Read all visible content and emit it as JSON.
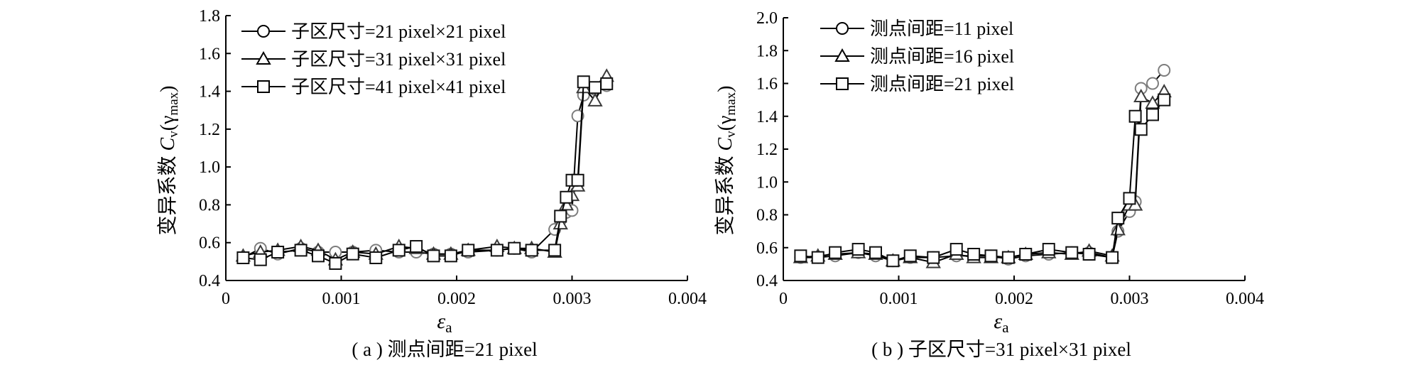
{
  "charts": [
    {
      "ylabel": "变异系数 Cv(γmax)",
      "ylabel_text": "变异系数 ",
      "ylabel_var": "C",
      "ylabel_sub": "v",
      "ylabel_paren": "(γ",
      "ylabel_sub2": "max",
      "ylabel_close": ")",
      "xlabel": "εa",
      "xlabel_var": "ε",
      "xlabel_sub": "a",
      "caption": "( a ) 测点间距=21 pixel",
      "xlim": [
        0,
        0.004
      ],
      "ylim": [
        0.4,
        1.8
      ],
      "xticks": [
        "0",
        "0.001",
        "0.002",
        "0.003",
        "0.004"
      ],
      "yticks": [
        "0.4",
        "0.6",
        "0.8",
        "1.0",
        "1.2",
        "1.4",
        "1.6",
        "1.8"
      ],
      "legend": [
        "子区尺寸=21 pixel×21 pixel",
        "子区尺寸=31 pixel×31 pixel",
        "子区尺寸=41 pixel×41 pixel"
      ]
    },
    {
      "ylabel": "变异系数 Cv(γmax)",
      "ylabel_text": "变异系数 ",
      "ylabel_var": "C",
      "ylabel_sub": "v",
      "ylabel_paren": "(γ",
      "ylabel_sub2": "max",
      "ylabel_close": ")",
      "xlabel": "εa",
      "xlabel_var": "ε",
      "xlabel_sub": "a",
      "caption": "( b ) 子区尺寸=31 pixel×31 pixel",
      "xlim": [
        0,
        0.004
      ],
      "ylim": [
        0.4,
        2.0
      ],
      "xticks": [
        "0",
        "0.001",
        "0.002",
        "0.003",
        "0.004"
      ],
      "yticks": [
        "0.4",
        "0.6",
        "0.8",
        "1.0",
        "1.2",
        "1.4",
        "1.6",
        "1.8",
        "2.0"
      ],
      "legend": [
        "测点间距=11 pixel",
        "测点间距=16 pixel",
        "测点间距=21 pixel"
      ]
    }
  ],
  "chart_data": [
    {
      "type": "line",
      "xlabel": "εa",
      "ylabel": "变异系数 Cv(γmax)",
      "xlim": [
        0,
        0.004
      ],
      "ylim": [
        0.4,
        1.8
      ],
      "grid": false,
      "legend_position": "top-left",
      "series": [
        {
          "name": "子区尺寸=21 pixel×21 pixel",
          "marker": "circle",
          "x": [
            0.00015,
            0.0003,
            0.00045,
            0.00065,
            0.0008,
            0.00095,
            0.0011,
            0.0013,
            0.0015,
            0.00165,
            0.0018,
            0.00195,
            0.0021,
            0.00235,
            0.0025,
            0.00265,
            0.00285,
            0.0029,
            0.00295,
            0.003,
            0.00305,
            0.0031,
            0.0032,
            0.0033
          ],
          "y": [
            0.52,
            0.57,
            0.54,
            0.57,
            0.55,
            0.55,
            0.55,
            0.56,
            0.55,
            0.55,
            0.54,
            0.54,
            0.55,
            0.56,
            0.57,
            0.55,
            0.67,
            0.72,
            0.76,
            0.77,
            1.27,
            1.38,
            1.41,
            1.43
          ]
        },
        {
          "name": "子区尺寸=31 pixel×31 pixel",
          "marker": "triangle",
          "x": [
            0.00015,
            0.0003,
            0.00045,
            0.00065,
            0.0008,
            0.00095,
            0.0011,
            0.0013,
            0.0015,
            0.00165,
            0.0018,
            0.00195,
            0.0021,
            0.00235,
            0.0025,
            0.00265,
            0.00285,
            0.0029,
            0.00295,
            0.003,
            0.00305,
            0.0031,
            0.0032,
            0.0033
          ],
          "y": [
            0.53,
            0.55,
            0.56,
            0.58,
            0.56,
            0.51,
            0.55,
            0.54,
            0.58,
            0.57,
            0.54,
            0.54,
            0.56,
            0.58,
            0.57,
            0.57,
            0.55,
            0.7,
            0.8,
            0.85,
            0.9,
            1.42,
            1.35,
            1.48
          ]
        },
        {
          "name": "子区尺寸=41 pixel×41 pixel",
          "marker": "square",
          "x": [
            0.00015,
            0.0003,
            0.00045,
            0.00065,
            0.0008,
            0.00095,
            0.0011,
            0.0013,
            0.0015,
            0.00165,
            0.0018,
            0.00195,
            0.0021,
            0.00235,
            0.0025,
            0.00265,
            0.00285,
            0.0029,
            0.00295,
            0.003,
            0.00305,
            0.0031,
            0.0032,
            0.0033
          ],
          "y": [
            0.52,
            0.51,
            0.55,
            0.56,
            0.53,
            0.49,
            0.54,
            0.52,
            0.56,
            0.58,
            0.53,
            0.53,
            0.56,
            0.56,
            0.57,
            0.56,
            0.56,
            0.74,
            0.84,
            0.93,
            0.93,
            1.45,
            1.42,
            1.44
          ]
        }
      ]
    },
    {
      "type": "line",
      "xlabel": "εa",
      "ylabel": "变异系数 Cv(γmax)",
      "xlim": [
        0,
        0.004
      ],
      "ylim": [
        0.4,
        2.0
      ],
      "grid": false,
      "legend_position": "top-left",
      "series": [
        {
          "name": "测点间距=11 pixel",
          "marker": "circle",
          "x": [
            0.00015,
            0.0003,
            0.00045,
            0.00065,
            0.0008,
            0.00095,
            0.0011,
            0.0013,
            0.0015,
            0.00165,
            0.0018,
            0.00195,
            0.0021,
            0.0023,
            0.0025,
            0.00265,
            0.00285,
            0.0029,
            0.003,
            0.00305,
            0.0031,
            0.0032,
            0.0033
          ],
          "y": [
            0.54,
            0.54,
            0.55,
            0.57,
            0.55,
            0.52,
            0.54,
            0.54,
            0.55,
            0.55,
            0.55,
            0.53,
            0.55,
            0.56,
            0.57,
            0.57,
            0.54,
            0.7,
            0.82,
            0.88,
            1.57,
            1.6,
            1.68
          ]
        },
        {
          "name": "测点间距=16 pixel",
          "marker": "triangle",
          "x": [
            0.00015,
            0.0003,
            0.00045,
            0.00065,
            0.0008,
            0.00095,
            0.0011,
            0.0013,
            0.0015,
            0.00165,
            0.0018,
            0.00195,
            0.0021,
            0.0023,
            0.0025,
            0.00265,
            0.00285,
            0.0029,
            0.003,
            0.00305,
            0.0031,
            0.0032,
            0.0033
          ],
          "y": [
            0.54,
            0.55,
            0.56,
            0.57,
            0.56,
            0.52,
            0.54,
            0.51,
            0.56,
            0.54,
            0.54,
            0.54,
            0.56,
            0.57,
            0.56,
            0.58,
            0.55,
            0.71,
            0.86,
            0.86,
            1.52,
            1.48,
            1.55
          ]
        },
        {
          "name": "测点间距=21 pixel",
          "marker": "square",
          "x": [
            0.00015,
            0.0003,
            0.00045,
            0.00065,
            0.0008,
            0.00095,
            0.0011,
            0.0013,
            0.0015,
            0.00165,
            0.0018,
            0.00195,
            0.0021,
            0.0023,
            0.0025,
            0.00265,
            0.00285,
            0.0029,
            0.003,
            0.00305,
            0.0031,
            0.0032,
            0.0033
          ],
          "y": [
            0.55,
            0.54,
            0.57,
            0.59,
            0.57,
            0.52,
            0.55,
            0.54,
            0.59,
            0.56,
            0.55,
            0.54,
            0.56,
            0.59,
            0.57,
            0.56,
            0.54,
            0.78,
            0.9,
            1.4,
            1.32,
            1.41,
            1.5
          ]
        }
      ]
    }
  ]
}
